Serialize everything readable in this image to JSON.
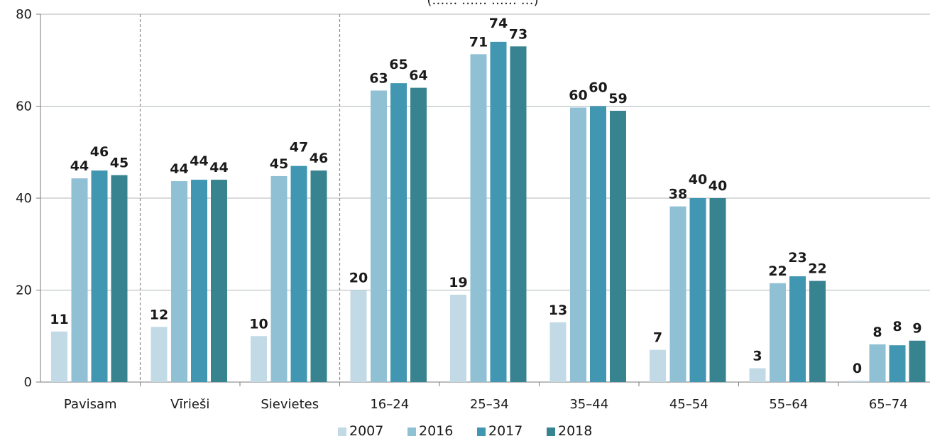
{
  "chart_data": {
    "type": "bar",
    "title": "(…… …… …… …)",
    "categories": [
      "Pavisam",
      "Vīrieši",
      "Sievietes",
      "16–24",
      "25–34",
      "35–44",
      "45–54",
      "55–64",
      "65–74"
    ],
    "series": [
      {
        "name": "2007",
        "color": "#c2dae5",
        "values": [
          11,
          12,
          10,
          20,
          19,
          13,
          7,
          3,
          0
        ]
      },
      {
        "name": "2016",
        "color": "#8fc0d4",
        "values": [
          44,
          44,
          45,
          63,
          71,
          60,
          38,
          22,
          8
        ]
      },
      {
        "name": "2017",
        "color": "#4197b2",
        "values": [
          46,
          44,
          47,
          65,
          74,
          60,
          40,
          23,
          8
        ]
      },
      {
        "name": "2018",
        "color": "#37838f",
        "values": [
          45,
          44,
          46,
          64,
          73,
          59,
          40,
          22,
          9
        ]
      }
    ],
    "plot_values": [
      [
        11,
        12,
        10,
        20,
        19,
        13,
        7,
        3,
        0.3
      ],
      [
        44.3,
        43.7,
        44.8,
        63.4,
        71.3,
        59.7,
        38.2,
        21.5,
        8.2
      ],
      [
        46,
        44,
        47,
        65,
        74,
        60,
        40,
        23,
        8
      ],
      [
        45,
        44,
        46,
        64,
        73,
        59,
        40,
        22,
        9
      ]
    ],
    "label_text": [
      [
        "11",
        "12",
        "10",
        "20",
        "19",
        "13",
        "7",
        "3",
        "0"
      ],
      [
        "44",
        "44",
        "45",
        "63",
        "71",
        "60",
        "38",
        "22",
        "8"
      ],
      [
        "46",
        "44",
        "47",
        "65",
        "74",
        "60",
        "40",
        "23",
        "8"
      ],
      [
        "45",
        "44",
        "46",
        "64",
        "73",
        "59",
        "40",
        "22",
        "9"
      ]
    ],
    "ylim": [
      0,
      80
    ],
    "yticks": [
      0,
      20,
      40,
      60,
      80
    ],
    "xlabel": "",
    "ylabel": "",
    "grid": true,
    "group_separators_after": [
      "Pavisam",
      "Sievietes"
    ],
    "legend_position": "bottom"
  }
}
